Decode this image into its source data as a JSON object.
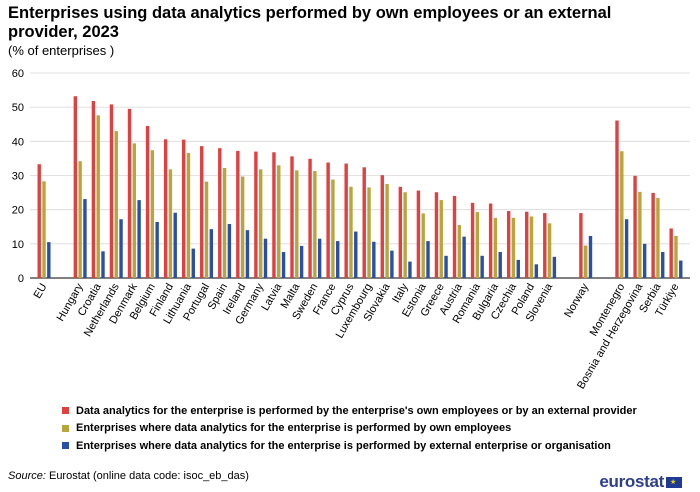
{
  "title": "Enterprises using data analytics performed by own employees or an external provider, 2023",
  "subtitle": "(% of enterprises )",
  "source_label": "Source:",
  "source_text": " Eurostat (online data code: isoc_eb_das)",
  "logo_text": "eurostat",
  "logo_stars": "★",
  "chart_data": {
    "type": "bar",
    "ylim": [
      0,
      60
    ],
    "yticks": [
      0,
      10,
      20,
      30,
      40,
      50,
      60
    ],
    "grid": true,
    "legend_position": "bottom",
    "categories": [
      "EU",
      "Hungary",
      "Croatia",
      "Netherlands",
      "Denmark",
      "Belgium",
      "Finland",
      "Lithuania",
      "Portugal",
      "Spain",
      "Ireland",
      "Germany",
      "Latvia",
      "Malta",
      "Sweden",
      "France",
      "Cyprus",
      "Luxembourg",
      "Slovakia",
      "Italy",
      "Estonia",
      "Greece",
      "Austria",
      "Romania",
      "Bulgaria",
      "Czechia",
      "Poland",
      "Slovenia",
      "Norway",
      "Montenegro",
      "Bosnia and Herzegovina",
      "Serbia",
      "Türkiye"
    ],
    "groups": [
      1,
      27,
      1,
      4
    ],
    "series": [
      {
        "name": "Data analytics for the enterprise is performed by the enterprise's own employees or by an external provider",
        "color": "#e04040",
        "values": [
          33.3,
          53.2,
          51.8,
          50.8,
          49.5,
          44.5,
          40.6,
          40.5,
          38.6,
          38.0,
          37.2,
          37.0,
          36.8,
          35.6,
          34.9,
          33.8,
          33.5,
          32.4,
          30.1,
          26.7,
          25.6,
          25.1,
          24.0,
          22.0,
          21.8,
          19.6,
          19.4,
          19.0,
          19.0,
          46.1,
          29.9,
          24.9,
          14.5
        ]
      },
      {
        "name": "Enterprises where data analytics for the enterprise is performed by own employees",
        "color": "#b9a53a",
        "values": [
          28.3,
          34.2,
          47.6,
          43.0,
          39.4,
          37.4,
          31.8,
          36.6,
          28.2,
          32.2,
          29.7,
          31.8,
          33.0,
          31.5,
          31.3,
          28.8,
          26.7,
          26.5,
          27.5,
          25.1,
          18.9,
          22.8,
          15.5,
          19.3,
          17.6,
          17.6,
          18.0,
          16.0,
          9.5,
          37.1,
          25.2,
          23.4,
          12.3
        ]
      },
      {
        "name": "Enterprises where data analytics for the enterprise is performed by external enterprise or organisation",
        "color": "#2a4fa8",
        "values": [
          10.5,
          23.1,
          7.8,
          17.2,
          22.8,
          16.4,
          19.1,
          8.6,
          14.3,
          15.8,
          14.0,
          11.5,
          7.6,
          9.4,
          11.5,
          10.8,
          13.6,
          10.6,
          8.0,
          4.8,
          10.8,
          6.5,
          12.1,
          6.5,
          7.6,
          5.3,
          4.0,
          6.2,
          12.3,
          17.2,
          10.0,
          7.6,
          5.1
        ]
      }
    ]
  }
}
